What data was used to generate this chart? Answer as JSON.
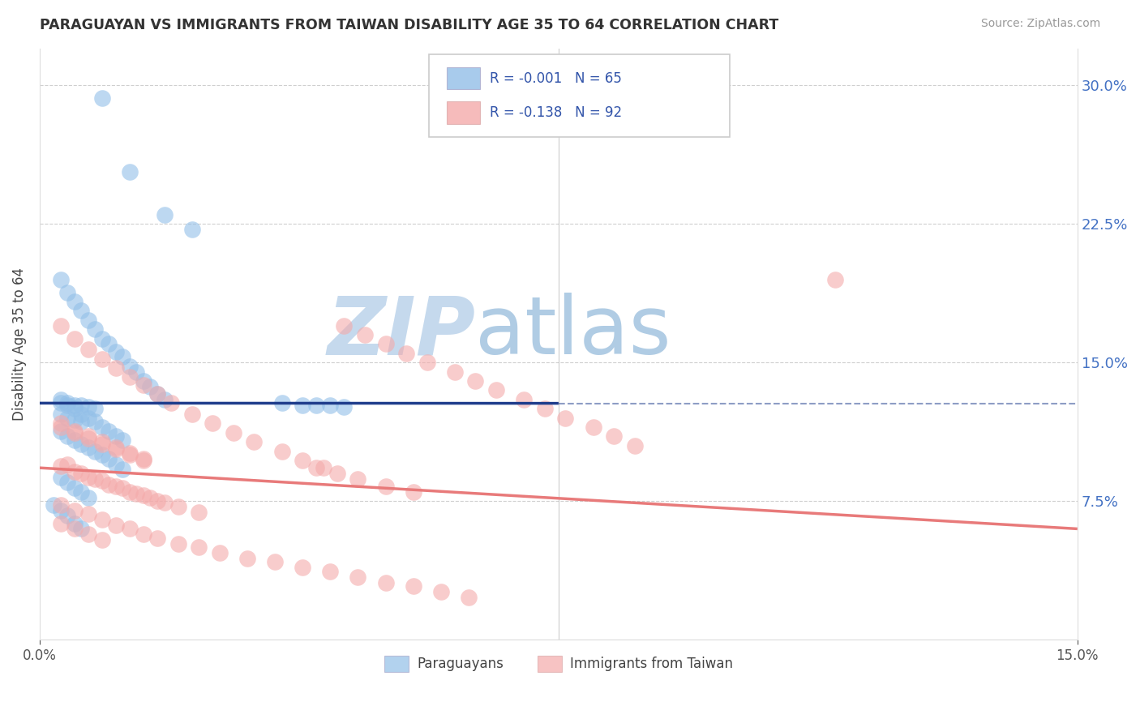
{
  "title": "PARAGUAYAN VS IMMIGRANTS FROM TAIWAN DISABILITY AGE 35 TO 64 CORRELATION CHART",
  "source": "Source: ZipAtlas.com",
  "ylabel": "Disability Age 35 to 64",
  "y_tick_labels": [
    "30.0%",
    "22.5%",
    "15.0%",
    "7.5%"
  ],
  "y_tick_values": [
    0.3,
    0.225,
    0.15,
    0.075
  ],
  "x_min": 0.0,
  "x_max": 0.15,
  "y_min": 0.0,
  "y_max": 0.32,
  "blue_R": -0.001,
  "blue_N": 65,
  "pink_R": -0.138,
  "pink_N": 92,
  "blue_color": "#92bfe8",
  "pink_color": "#f4aaaa",
  "blue_line_color": "#1f3d8c",
  "pink_line_color": "#e87a7a",
  "watermark_zip": "ZIP",
  "watermark_atlas": "atlas",
  "watermark_color_zip": "#c5d9ed",
  "watermark_color_atlas": "#b0cce4",
  "legend_label_blue": "Paraguayans",
  "legend_label_pink": "Immigrants from Taiwan",
  "blue_line_x": [
    0.0,
    0.075
  ],
  "blue_line_y": [
    0.128,
    0.1279
  ],
  "pink_line_x": [
    0.0,
    0.15
  ],
  "pink_line_y": [
    0.093,
    0.06
  ],
  "blue_points_x": [
    0.009,
    0.013,
    0.018,
    0.022,
    0.003,
    0.004,
    0.005,
    0.006,
    0.007,
    0.008,
    0.009,
    0.01,
    0.011,
    0.012,
    0.013,
    0.014,
    0.015,
    0.016,
    0.017,
    0.018,
    0.003,
    0.004,
    0.005,
    0.006,
    0.007,
    0.008,
    0.009,
    0.01,
    0.011,
    0.012,
    0.003,
    0.004,
    0.005,
    0.006,
    0.007,
    0.008,
    0.003,
    0.004,
    0.005,
    0.006,
    0.003,
    0.004,
    0.005,
    0.006,
    0.007,
    0.008,
    0.009,
    0.01,
    0.011,
    0.012,
    0.035,
    0.038,
    0.04,
    0.042,
    0.044,
    0.003,
    0.004,
    0.005,
    0.006,
    0.007,
    0.002,
    0.003,
    0.004,
    0.005,
    0.006
  ],
  "blue_points_y": [
    0.293,
    0.253,
    0.23,
    0.222,
    0.195,
    0.188,
    0.183,
    0.178,
    0.173,
    0.168,
    0.163,
    0.16,
    0.156,
    0.153,
    0.148,
    0.145,
    0.14,
    0.137,
    0.133,
    0.13,
    0.13,
    0.127,
    0.125,
    0.122,
    0.12,
    0.118,
    0.115,
    0.113,
    0.11,
    0.108,
    0.128,
    0.128,
    0.127,
    0.127,
    0.126,
    0.125,
    0.122,
    0.12,
    0.119,
    0.118,
    0.113,
    0.11,
    0.108,
    0.106,
    0.104,
    0.102,
    0.1,
    0.098,
    0.095,
    0.092,
    0.128,
    0.127,
    0.127,
    0.127,
    0.126,
    0.088,
    0.085,
    0.082,
    0.08,
    0.077,
    0.073,
    0.07,
    0.067,
    0.063,
    0.06
  ],
  "pink_points_x": [
    0.003,
    0.005,
    0.007,
    0.009,
    0.011,
    0.013,
    0.015,
    0.017,
    0.019,
    0.022,
    0.025,
    0.028,
    0.031,
    0.035,
    0.038,
    0.041,
    0.044,
    0.047,
    0.05,
    0.053,
    0.056,
    0.06,
    0.063,
    0.066,
    0.07,
    0.073,
    0.076,
    0.08,
    0.083,
    0.086,
    0.004,
    0.006,
    0.008,
    0.01,
    0.012,
    0.014,
    0.016,
    0.018,
    0.02,
    0.023,
    0.003,
    0.005,
    0.007,
    0.009,
    0.011,
    0.013,
    0.015,
    0.017,
    0.003,
    0.005,
    0.007,
    0.009,
    0.011,
    0.013,
    0.015,
    0.017,
    0.02,
    0.023,
    0.026,
    0.03,
    0.034,
    0.038,
    0.042,
    0.046,
    0.05,
    0.054,
    0.058,
    0.062,
    0.003,
    0.005,
    0.007,
    0.009,
    0.011,
    0.013,
    0.015,
    0.003,
    0.005,
    0.007,
    0.009,
    0.011,
    0.013,
    0.015,
    0.04,
    0.043,
    0.046,
    0.05,
    0.054,
    0.115,
    0.003,
    0.005,
    0.007,
    0.009
  ],
  "pink_points_y": [
    0.17,
    0.163,
    0.157,
    0.152,
    0.147,
    0.142,
    0.138,
    0.133,
    0.128,
    0.122,
    0.117,
    0.112,
    0.107,
    0.102,
    0.097,
    0.093,
    0.17,
    0.165,
    0.16,
    0.155,
    0.15,
    0.145,
    0.14,
    0.135,
    0.13,
    0.125,
    0.12,
    0.115,
    0.11,
    0.105,
    0.095,
    0.09,
    0.087,
    0.084,
    0.082,
    0.079,
    0.077,
    0.074,
    0.072,
    0.069,
    0.094,
    0.091,
    0.088,
    0.086,
    0.083,
    0.08,
    0.078,
    0.075,
    0.073,
    0.07,
    0.068,
    0.065,
    0.062,
    0.06,
    0.057,
    0.055,
    0.052,
    0.05,
    0.047,
    0.044,
    0.042,
    0.039,
    0.037,
    0.034,
    0.031,
    0.029,
    0.026,
    0.023,
    0.117,
    0.113,
    0.11,
    0.107,
    0.104,
    0.101,
    0.098,
    0.115,
    0.112,
    0.109,
    0.106,
    0.103,
    0.1,
    0.097,
    0.093,
    0.09,
    0.087,
    0.083,
    0.08,
    0.195,
    0.063,
    0.06,
    0.057,
    0.054
  ]
}
